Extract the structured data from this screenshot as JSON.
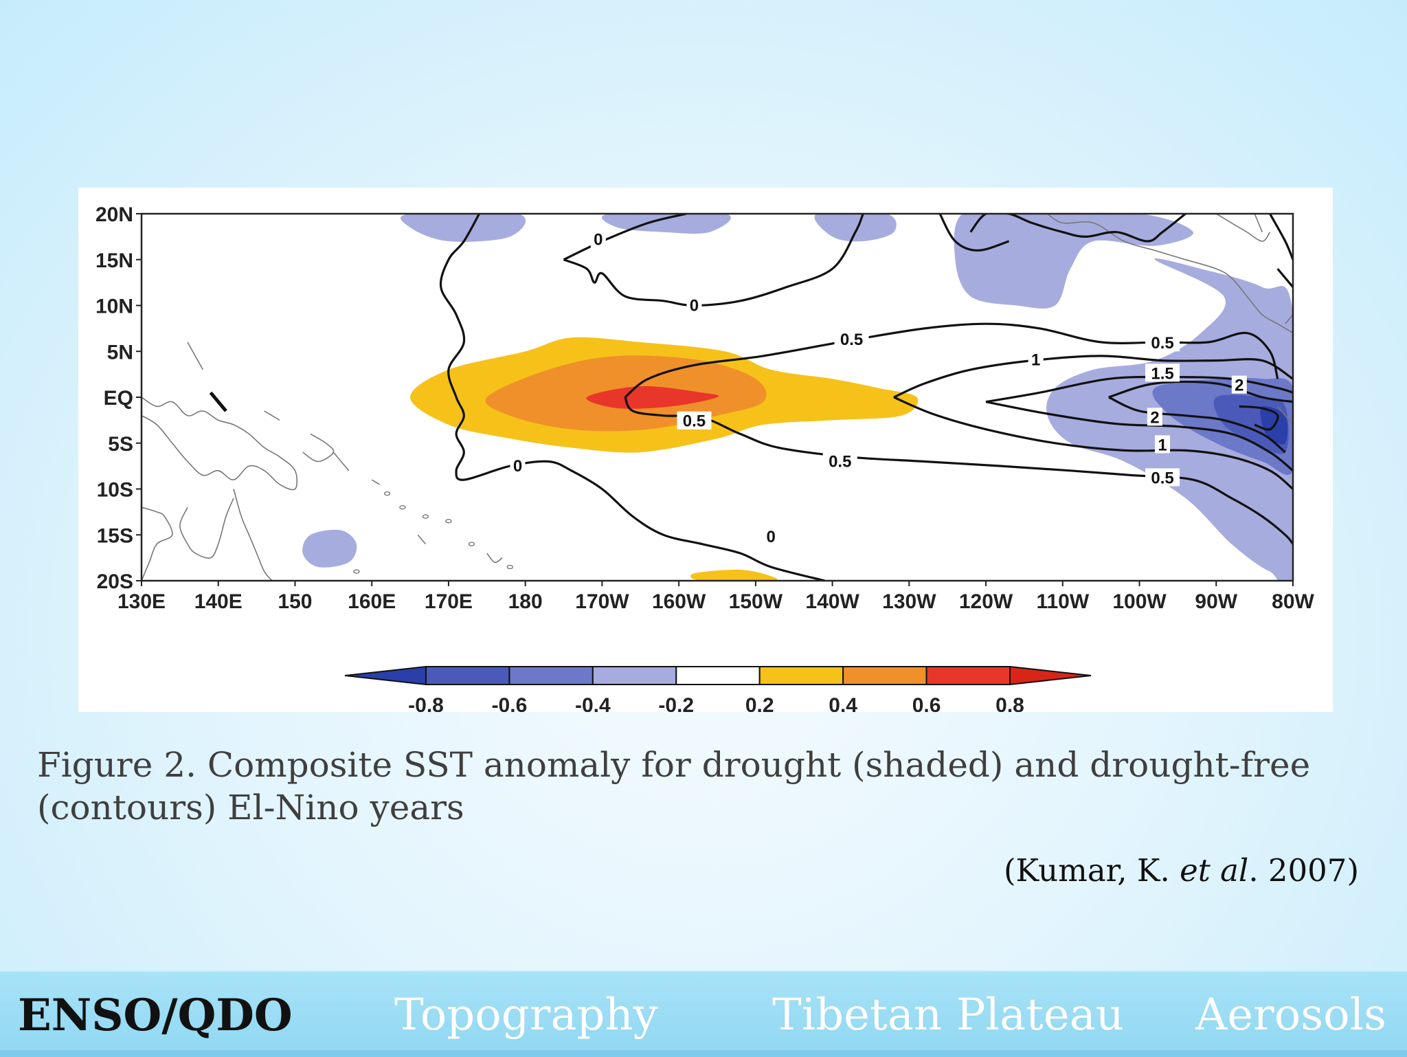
{
  "chart_data": {
    "type": "heatmap",
    "title": "",
    "description_caption": "Figure 2. Composite SST anomaly for drought (shaded) and drought-free (contours) El-Nino years",
    "x_ticks": [
      "130E",
      "140E",
      "150",
      "160E",
      "170E",
      "180",
      "170W",
      "160W",
      "150W",
      "140W",
      "130W",
      "120W",
      "110W",
      "100W",
      "90W",
      "80W"
    ],
    "y_ticks": [
      "20N",
      "15N",
      "10N",
      "5N",
      "EQ",
      "5S",
      "10S",
      "15S",
      "20S"
    ],
    "lon_range": [
      130,
      280
    ],
    "lat_range": [
      -20,
      20
    ],
    "shaded_field": "drought composite SST anomaly",
    "colorbar": {
      "ticks": [
        "-0.8",
        "-0.6",
        "-0.4",
        "-0.2",
        "0.2",
        "0.4",
        "0.6",
        "0.8"
      ],
      "colors": [
        "#2a3fa8",
        "#4b5ab9",
        "#6c78c8",
        "#a7acdf",
        "#ffffff",
        "#f6c21a",
        "#f0902a",
        "#e8362a",
        "#d92418"
      ]
    },
    "shaded_regions": [
      {
        "level": 0.2,
        "color": "#f6c21a",
        "center_lon": 200,
        "center_lat": 0
      },
      {
        "level": 0.4,
        "color": "#f0902a",
        "center_lon": 198,
        "center_lat": 0
      },
      {
        "level": 0.6,
        "color": "#e8362a",
        "center_lon": 200,
        "center_lat": 0
      },
      {
        "level": -0.2,
        "color": "#a7acdf",
        "center_lon": 265,
        "center_lat": 0
      },
      {
        "level": -0.4,
        "color": "#6c78c8",
        "center_lon": 270,
        "center_lat": -1
      },
      {
        "level": -0.6,
        "color": "#4b5ab9",
        "center_lon": 274,
        "center_lat": -2
      },
      {
        "level": -0.8,
        "color": "#2a3fa8",
        "center_lon": 277,
        "center_lat": -3
      }
    ],
    "contour_labels": [
      "0",
      "0",
      "0",
      "0",
      "0.5",
      "0.5",
      "0.5",
      "0.5",
      "0.5",
      "1",
      "1",
      "1.5",
      "2",
      "2"
    ]
  },
  "caption": {
    "line1": "Figure 2. Composite SST anomaly for drought (shaded) and drought-free",
    "line2": "(contours) El-Nino years"
  },
  "citation": {
    "prefix": "(Kumar, K. ",
    "italic": "et al",
    "suffix": ". 2007)"
  },
  "nav": {
    "items": [
      {
        "label": "ENSO/QDO",
        "active": true
      },
      {
        "label": "Topography",
        "active": false
      },
      {
        "label": "Tibetan Plateau",
        "active": false
      },
      {
        "label": "Aerosols",
        "active": false
      }
    ]
  }
}
